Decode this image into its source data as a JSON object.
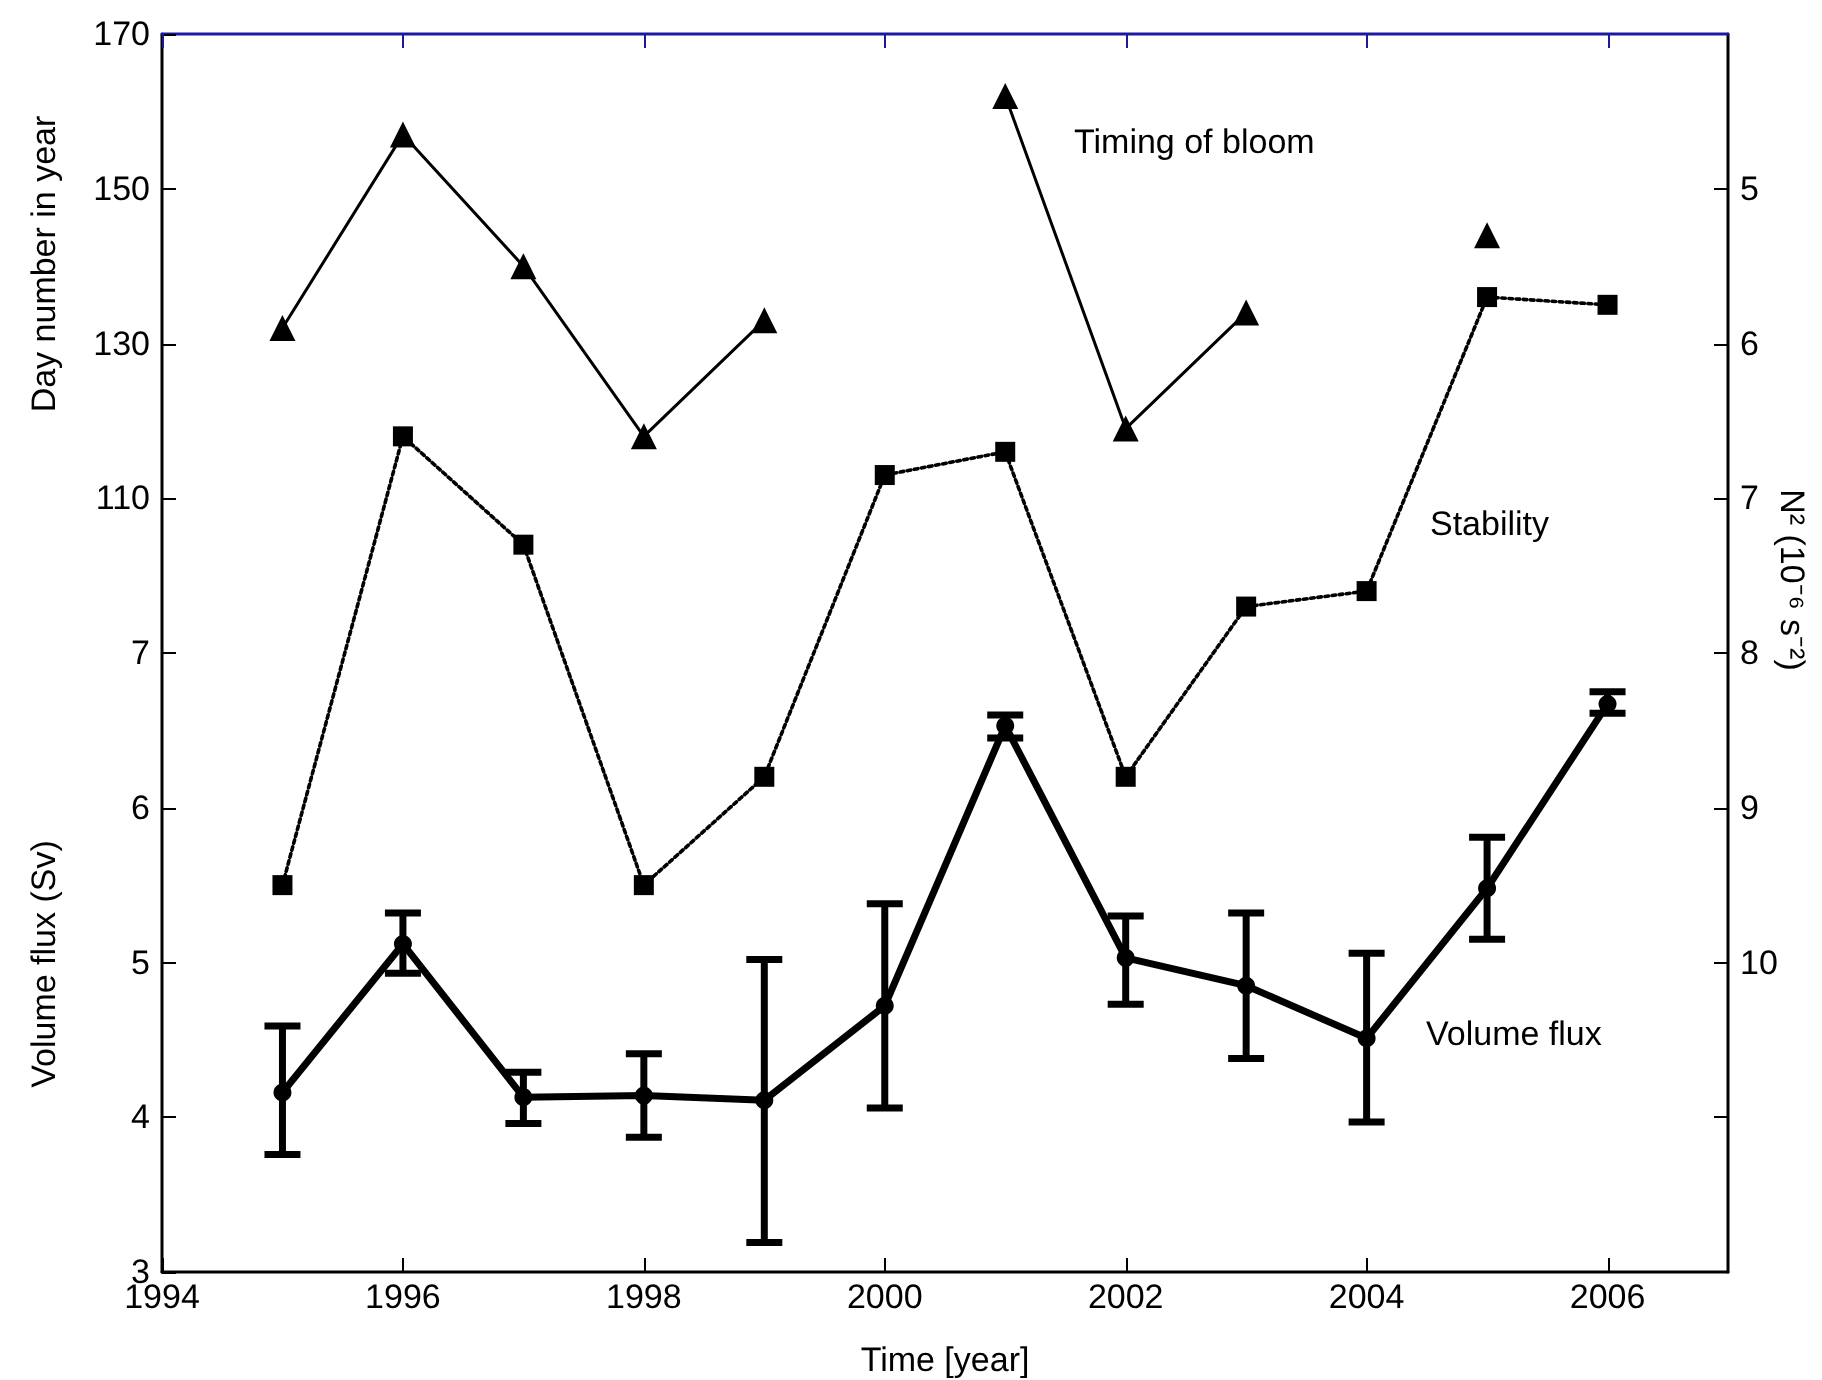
{
  "chart_data": {
    "type": "line",
    "xlabel": "Time [year]",
    "ylabel": "Day number in year",
    "y2label": "N² (10⁻⁶ s⁻²)",
    "y3label": "Volume flux (Sv)",
    "x": [
      1995,
      1996,
      1997,
      1998,
      1999,
      2000,
      2001,
      2002,
      2003,
      2004,
      2005,
      2006
    ],
    "xlim": [
      1994,
      2007
    ],
    "xticks": [
      1994,
      1996,
      1998,
      2000,
      2002,
      2004,
      2006
    ],
    "ylim": [
      10,
      170
    ],
    "yticks": [
      110,
      130,
      150,
      170
    ],
    "y2lim": [
      12,
      4
    ],
    "y2ticks": [
      5,
      6,
      7,
      8,
      9,
      10,
      {
        "value": 11,
        "label": null
      }
    ],
    "y3lim": [
      3,
      11
    ],
    "y3ticks": [
      3,
      4,
      5,
      6,
      7
    ],
    "series": [
      {
        "name": "Timing of bloom",
        "color": "#000000",
        "marker": "triangle",
        "line_style": "solid",
        "values": [
          132,
          157,
          140,
          118,
          133,
          null,
          162,
          119,
          134,
          null,
          144,
          null
        ]
      },
      {
        "name": "Stability",
        "color": "#000000",
        "axis": "y2",
        "marker": "square",
        "line_style": "dotted",
        "values": [
          9.5,
          6.6,
          7.3,
          9.5,
          8.8,
          6.85,
          6.7,
          8.8,
          7.7,
          7.6,
          5.7,
          5.75
        ]
      },
      {
        "name": "Volume flux",
        "color": "#000000",
        "axis": "y3",
        "marker": "circle",
        "line_style": "solid",
        "values": [
          4.16,
          5.12,
          4.13,
          4.14,
          4.11,
          4.72,
          6.53,
          5.03,
          4.85,
          4.51,
          5.48,
          6.67
        ],
        "errors": [
          [
            3.76,
            4.59
          ],
          [
            4.93,
            5.32
          ],
          [
            3.96,
            4.29
          ],
          [
            3.87,
            4.41
          ],
          [
            3.19,
            5.02
          ],
          [
            4.06,
            5.38
          ],
          [
            6.45,
            6.6
          ],
          [
            4.73,
            5.3
          ],
          [
            4.38,
            5.32
          ],
          [
            3.97,
            5.06
          ],
          [
            5.15,
            5.81
          ],
          [
            6.61,
            6.75
          ]
        ]
      }
    ]
  }
}
